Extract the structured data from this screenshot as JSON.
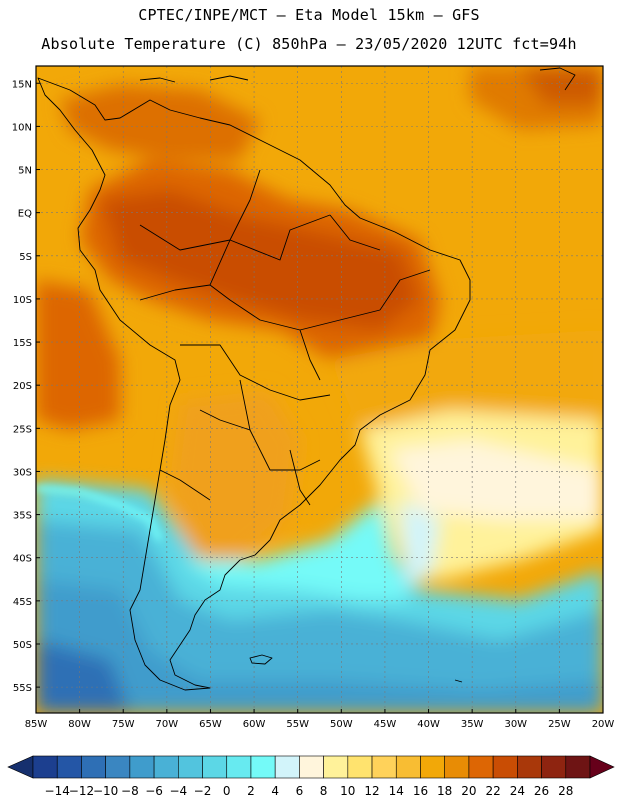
{
  "header": {
    "line1": "CPTEC/INPE/MCT –  Eta Model 15km – GFS",
    "line2": "Absolute Temperature (C) 850hPa – 23/05/2020 12UTC fct=94h"
  },
  "map": {
    "lon_range": [
      -85,
      -20
    ],
    "lat_range": [
      -58,
      17
    ],
    "lat_labels": [
      "15N",
      "10N",
      "5N",
      "EQ",
      "5S",
      "10S",
      "15S",
      "20S",
      "25S",
      "30S",
      "35S",
      "40S",
      "45S",
      "50S",
      "55S"
    ],
    "lat_values": [
      15,
      10,
      5,
      0,
      -5,
      -10,
      -15,
      -20,
      -25,
      -30,
      -35,
      -40,
      -45,
      -50,
      -55
    ],
    "lon_labels": [
      "85W",
      "80W",
      "75W",
      "70W",
      "65W",
      "60W",
      "55W",
      "50W",
      "45W",
      "40W",
      "35W",
      "30W",
      "25W",
      "20W"
    ],
    "lon_values": [
      -85,
      -80,
      -75,
      -70,
      -65,
      -60,
      -55,
      -50,
      -45,
      -40,
      -35,
      -30,
      -25,
      -20
    ],
    "grid": true
  },
  "colorbar": {
    "labels": [
      "-14",
      "-12",
      "-10",
      "-8",
      "-6",
      "-4",
      "-2",
      "0",
      "2",
      "4",
      "6",
      "8",
      "10",
      "12",
      "14",
      "16",
      "18",
      "20",
      "22",
      "24",
      "26",
      "28"
    ],
    "colors": [
      "#1c3f8f",
      "#2456a6",
      "#2e6fb5",
      "#3a86c1",
      "#3f9ccc",
      "#49b1d6",
      "#52c4de",
      "#5cd7e6",
      "#67eaf0",
      "#74faf8",
      "#d2f4fa",
      "#fff5dc",
      "#fff29a",
      "#ffe36e",
      "#ffd25a",
      "#f8bd33",
      "#f2a808",
      "#e88c05",
      "#dd6604",
      "#c94d04",
      "#a9380a",
      "#8e2410",
      "#6e1414"
    ],
    "under_color": "#16306e",
    "over_color": "#66001a"
  }
}
